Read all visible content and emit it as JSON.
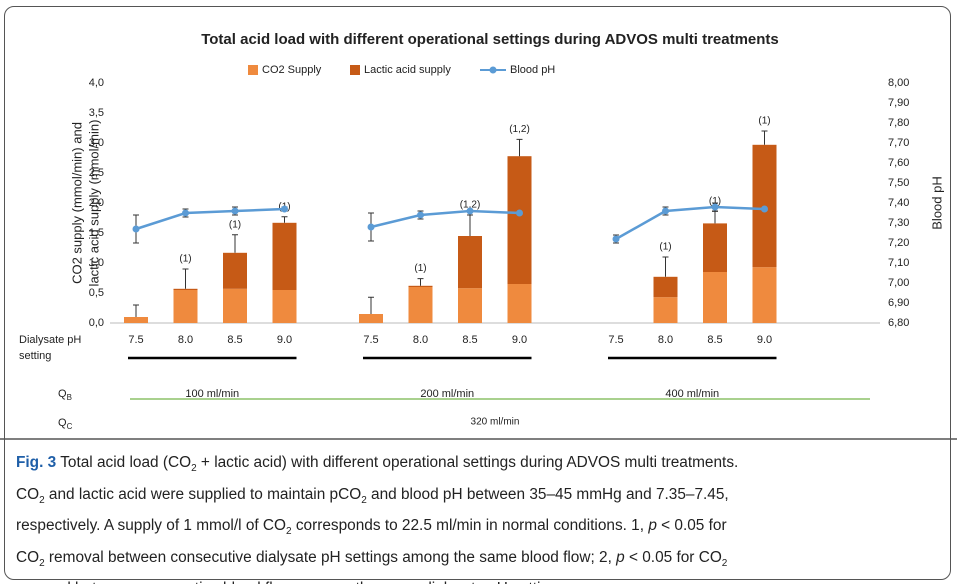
{
  "chart_data": {
    "type": "bar",
    "title": "Total acid load with different operational settings during ADVOS multi treatments",
    "y_label_lines": [
      "CO2 supply (mmol/min) and",
      "lactic acid supply (mmol/min)"
    ],
    "y2_label": "Blood pH",
    "x_label_lines": [
      "Dialysate pH",
      "setting"
    ],
    "stacked": true,
    "groups": [
      {
        "label": "100 ml/min",
        "categories": [
          "7.5",
          "8.0",
          "8.5",
          "9.0"
        ]
      },
      {
        "label": "200 ml/min",
        "categories": [
          "7.5",
          "8.0",
          "8.5",
          "9.0"
        ]
      },
      {
        "label": "400 ml/min",
        "categories": [
          "7.5",
          "8.0",
          "8.5",
          "9.0"
        ]
      }
    ],
    "qb_label": {
      "text": "Q",
      "sub": "B"
    },
    "qc_label": {
      "text": "Q",
      "sub": "C"
    },
    "qc_value": "320 ml/min",
    "series": [
      {
        "name": "CO2 Supply",
        "type": "bar",
        "color": "#ef8a3e",
        "values": [
          0.1,
          0.55,
          0.57,
          0.55,
          0.15,
          0.6,
          0.58,
          0.65,
          null,
          0.43,
          0.85,
          0.93
        ]
      },
      {
        "name": "Lactic acid supply",
        "type": "bar",
        "color": "#c65a16",
        "values": [
          0,
          0.02,
          0.6,
          1.12,
          0,
          0.02,
          0.87,
          2.13,
          null,
          0.34,
          0.81,
          2.04
        ],
        "errors": [
          0.2,
          0.33,
          0.3,
          0.1,
          0.28,
          0.12,
          0.35,
          0.28,
          null,
          0.33,
          0.2,
          0.23
        ],
        "annotations": [
          null,
          "(1)",
          "(1)",
          "(1)",
          null,
          "(1)",
          "(1,2)",
          "(1,2)",
          null,
          "(1)",
          "(1)",
          "(1)"
        ]
      },
      {
        "name": "Blood pH",
        "type": "line",
        "axis": "y2",
        "color": "#5b9bd5",
        "values": [
          7.27,
          7.35,
          7.36,
          7.37,
          7.28,
          7.34,
          7.36,
          7.35,
          7.22,
          7.36,
          7.38,
          7.37
        ],
        "errors": [
          0.07,
          0.02,
          0.02,
          0.01,
          0.07,
          0.02,
          0,
          0,
          0.02,
          0.02,
          0.02,
          0
        ]
      }
    ],
    "ylim": [
      0,
      4
    ],
    "yticks": [
      {
        "value": 0,
        "label": "0,0"
      },
      {
        "value": 0.5,
        "label": "0,5"
      },
      {
        "value": 1,
        "label": "1,0"
      },
      {
        "value": 1.5,
        "label": "1,5"
      },
      {
        "value": 2,
        "label": "2,0"
      },
      {
        "value": 2.5,
        "label": "2,5"
      },
      {
        "value": 3,
        "label": "3,0"
      },
      {
        "value": 3.5,
        "label": "3,5"
      },
      {
        "value": 4,
        "label": "4,0"
      }
    ],
    "y2lim": [
      6.8,
      8
    ],
    "y2ticks": [
      {
        "value": 6.8,
        "label": "6,80"
      },
      {
        "value": 6.9,
        "label": "6,90"
      },
      {
        "value": 7,
        "label": "7,00"
      },
      {
        "value": 7.1,
        "label": "7,10"
      },
      {
        "value": 7.2,
        "label": "7,20"
      },
      {
        "value": 7.3,
        "label": "7,30"
      },
      {
        "value": 7.4,
        "label": "7,40"
      },
      {
        "value": 7.5,
        "label": "7,50"
      },
      {
        "value": 7.6,
        "label": "7,60"
      },
      {
        "value": 7.7,
        "label": "7,70"
      },
      {
        "value": 7.8,
        "label": "7,80"
      },
      {
        "value": 7.9,
        "label": "7,90"
      },
      {
        "value": 8,
        "label": "8,00"
      }
    ]
  },
  "caption": {
    "lines": [
      [
        {
          "text": "Fig. 3",
          "bold": true
        },
        {
          "text": " Total acid load (CO"
        },
        {
          "text": "2",
          "sub": true
        },
        {
          "text": " + lactic acid) with different operational settings during ADVOS multi treatments."
        }
      ],
      [
        {
          "text": "CO"
        },
        {
          "text": "2",
          "sub": true
        },
        {
          "text": " and lactic acid were supplied to maintain pCO"
        },
        {
          "text": "2",
          "sub": true
        },
        {
          "text": " and blood pH between 35–45 mmHg and 7.35–7.45,"
        }
      ],
      [
        {
          "text": "respectively. A supply of 1 mmol/l of CO"
        },
        {
          "text": "2",
          "sub": true
        },
        {
          "text": " corresponds to 22.5 ml/min in normal conditions. 1, "
        },
        {
          "text": "p",
          "italic": true
        },
        {
          "text": " < 0.05 for"
        }
      ],
      [
        {
          "text": "CO"
        },
        {
          "text": "2",
          "sub": true
        },
        {
          "text": " removal between consecutive dialysate pH settings among the same blood flow; 2, "
        },
        {
          "text": "p",
          "italic": true
        },
        {
          "text": " < 0.05 for CO"
        },
        {
          "text": "2",
          "sub": true
        }
      ],
      [
        {
          "text": "removal between consecutive blood flows among the same dialysate pH setting."
        }
      ]
    ]
  }
}
